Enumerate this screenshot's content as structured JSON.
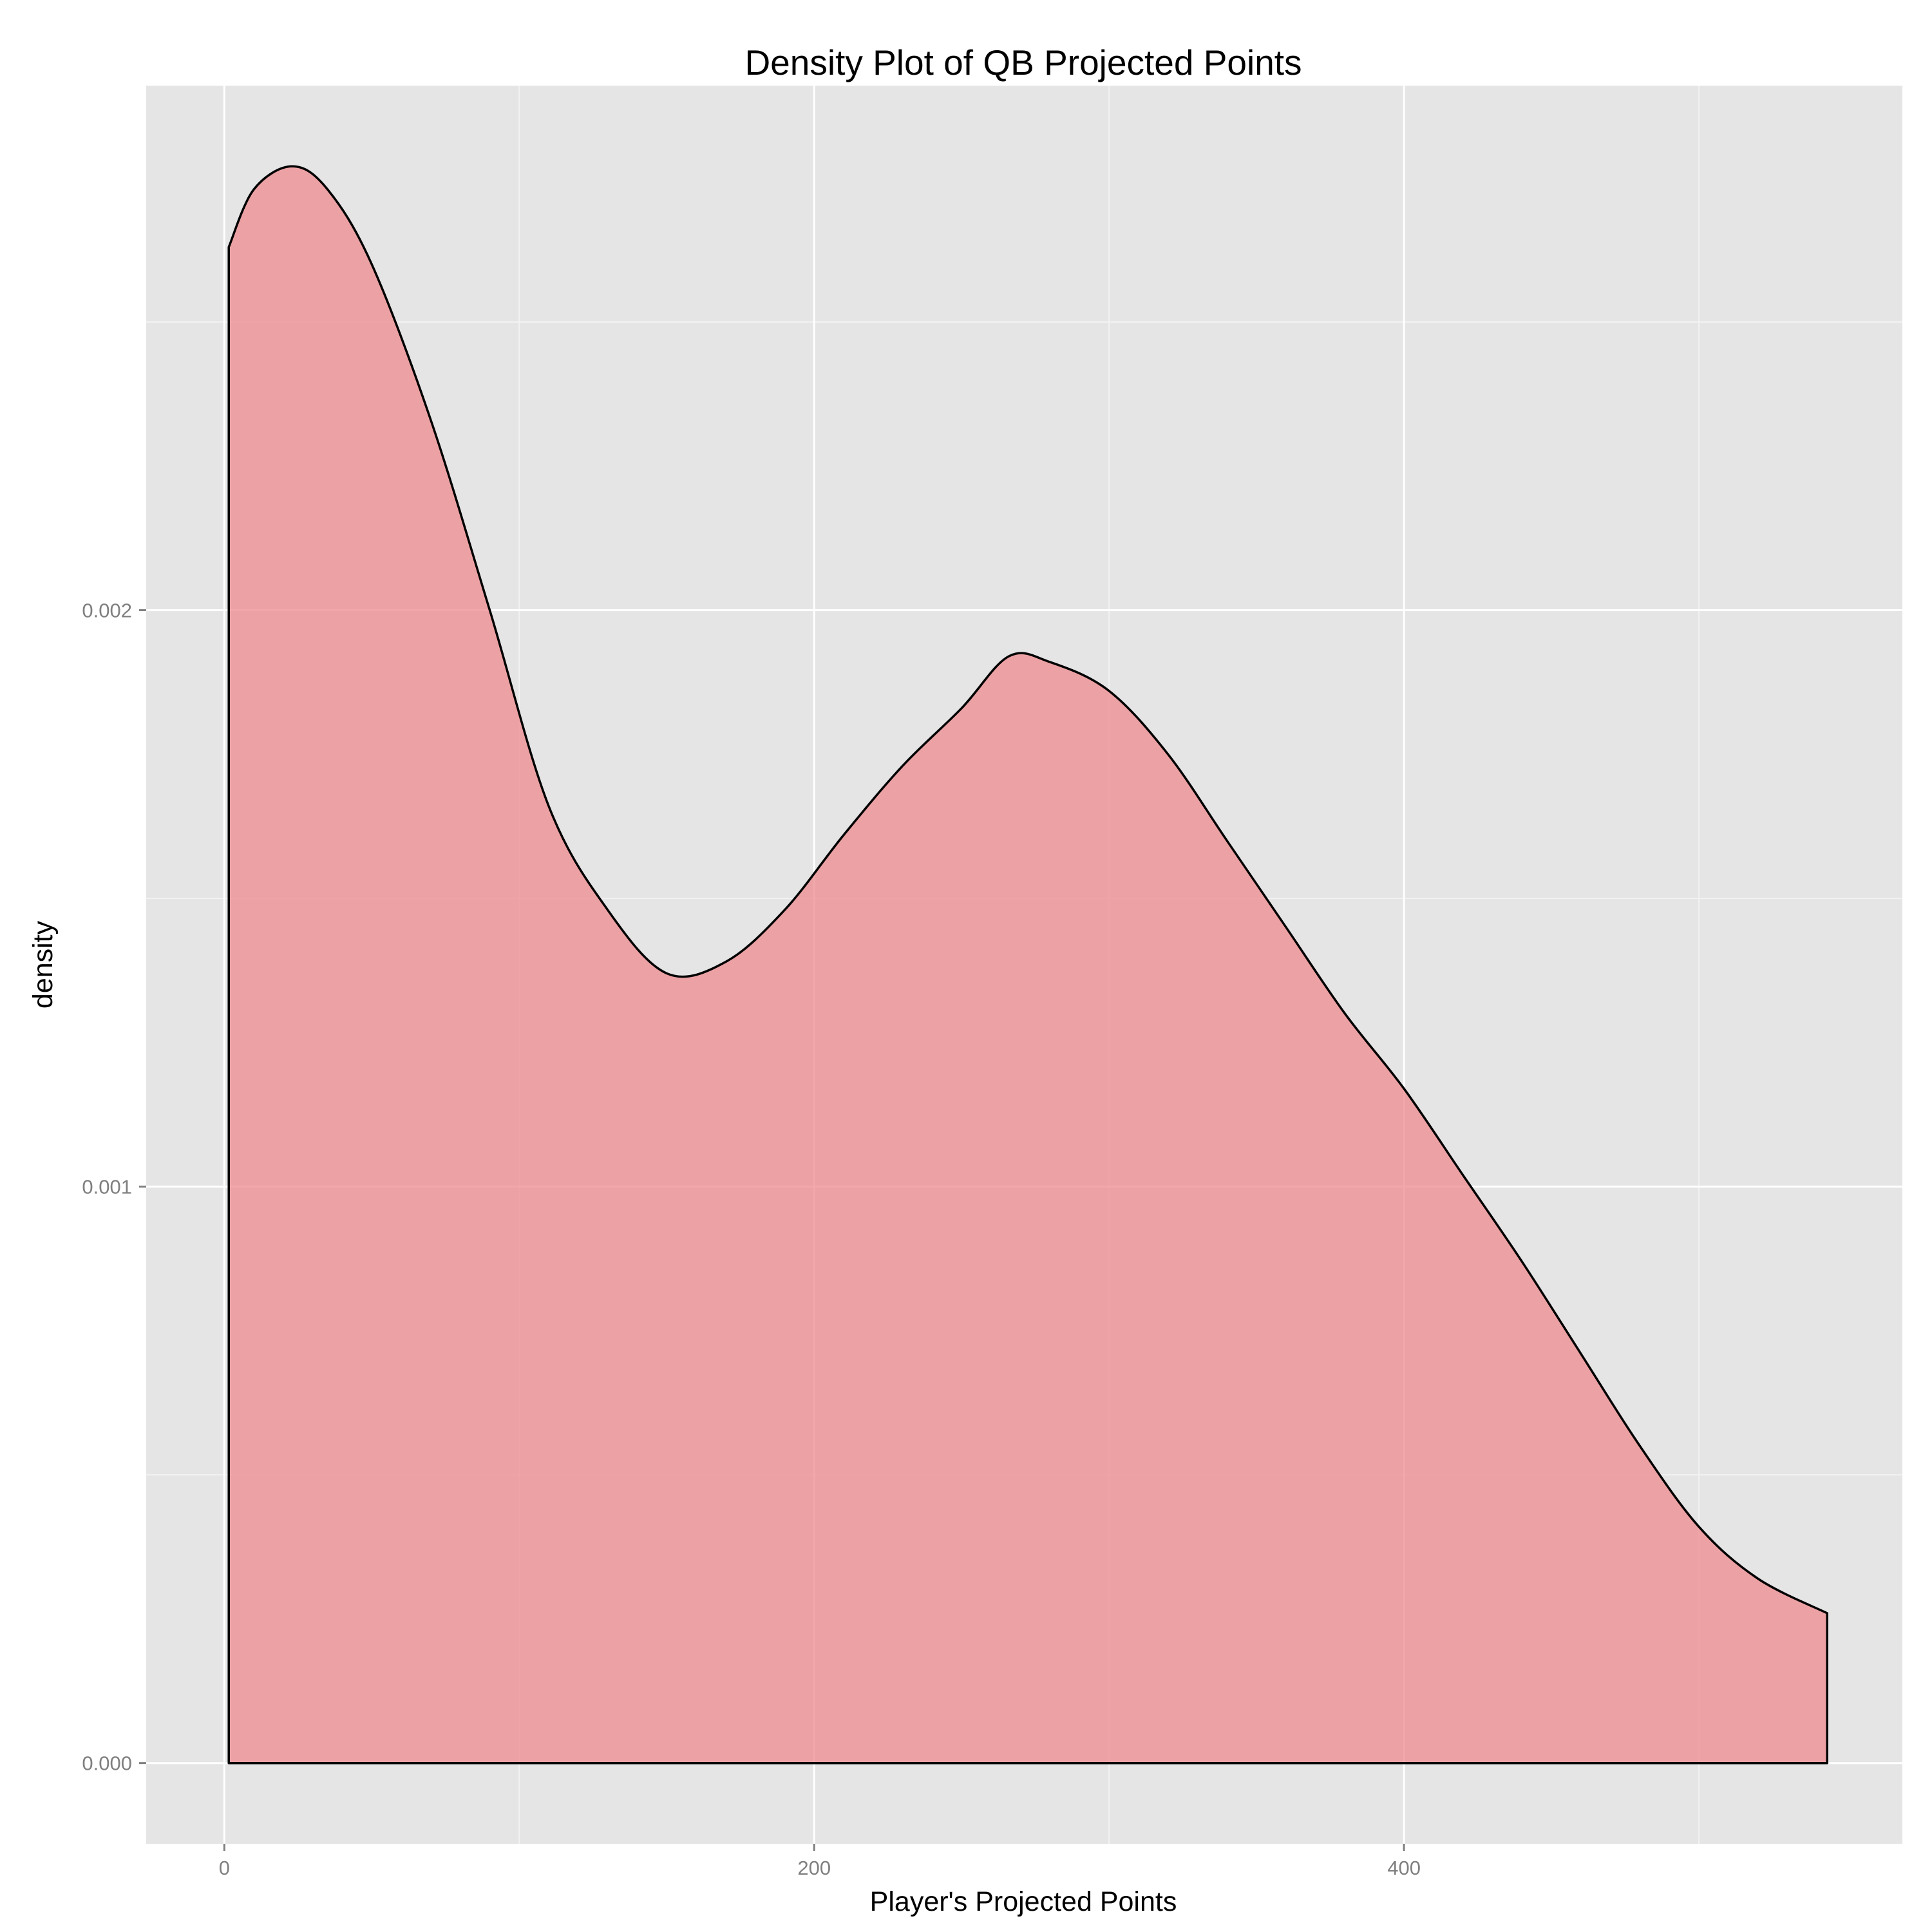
{
  "chart_data": {
    "type": "area",
    "title": "Density Plot of QB Projected Points",
    "xlabel": "Player's Projected Points",
    "ylabel": "density",
    "xlim": [
      -26.5,
      569
    ],
    "ylim": [
      -0.00014,
      0.00291
    ],
    "x_ticks": [
      0,
      200,
      400
    ],
    "x_tick_labels": [
      "0",
      "200",
      "400"
    ],
    "y_ticks": [
      0.0,
      0.001,
      0.002
    ],
    "y_tick_labels": [
      "0.000",
      "0.001",
      "0.002"
    ],
    "grid": true,
    "legend": "none",
    "colors": {
      "panel_background": "#e5e5e5",
      "grid_major": "#ffffff",
      "grid_minor": "#f2f2f2",
      "fill": "#ed8b8d",
      "fill_opacity": 0.75,
      "line": "#000000"
    },
    "series": [
      {
        "x": [
          1.5,
          10,
          23,
          35,
          50,
          70,
          90,
          110,
          130,
          150,
          170,
          190,
          210,
          230,
          250,
          266,
          280,
          300,
          320,
          340,
          360,
          380,
          400,
          420,
          440,
          460,
          480,
          500,
          520,
          543.5
        ],
        "values": [
          0.00263,
          0.00273,
          0.00277,
          0.00273,
          0.0026,
          0.00233,
          0.002,
          0.00166,
          0.00148,
          0.00137,
          0.00139,
          0.00148,
          0.00161,
          0.00173,
          0.00183,
          0.00192,
          0.00191,
          0.00186,
          0.00175,
          0.0016,
          0.00145,
          0.0013,
          0.00117,
          0.00102,
          0.00087,
          0.00071,
          0.00055,
          0.00041,
          0.00032,
          0.00026
        ]
      }
    ]
  }
}
